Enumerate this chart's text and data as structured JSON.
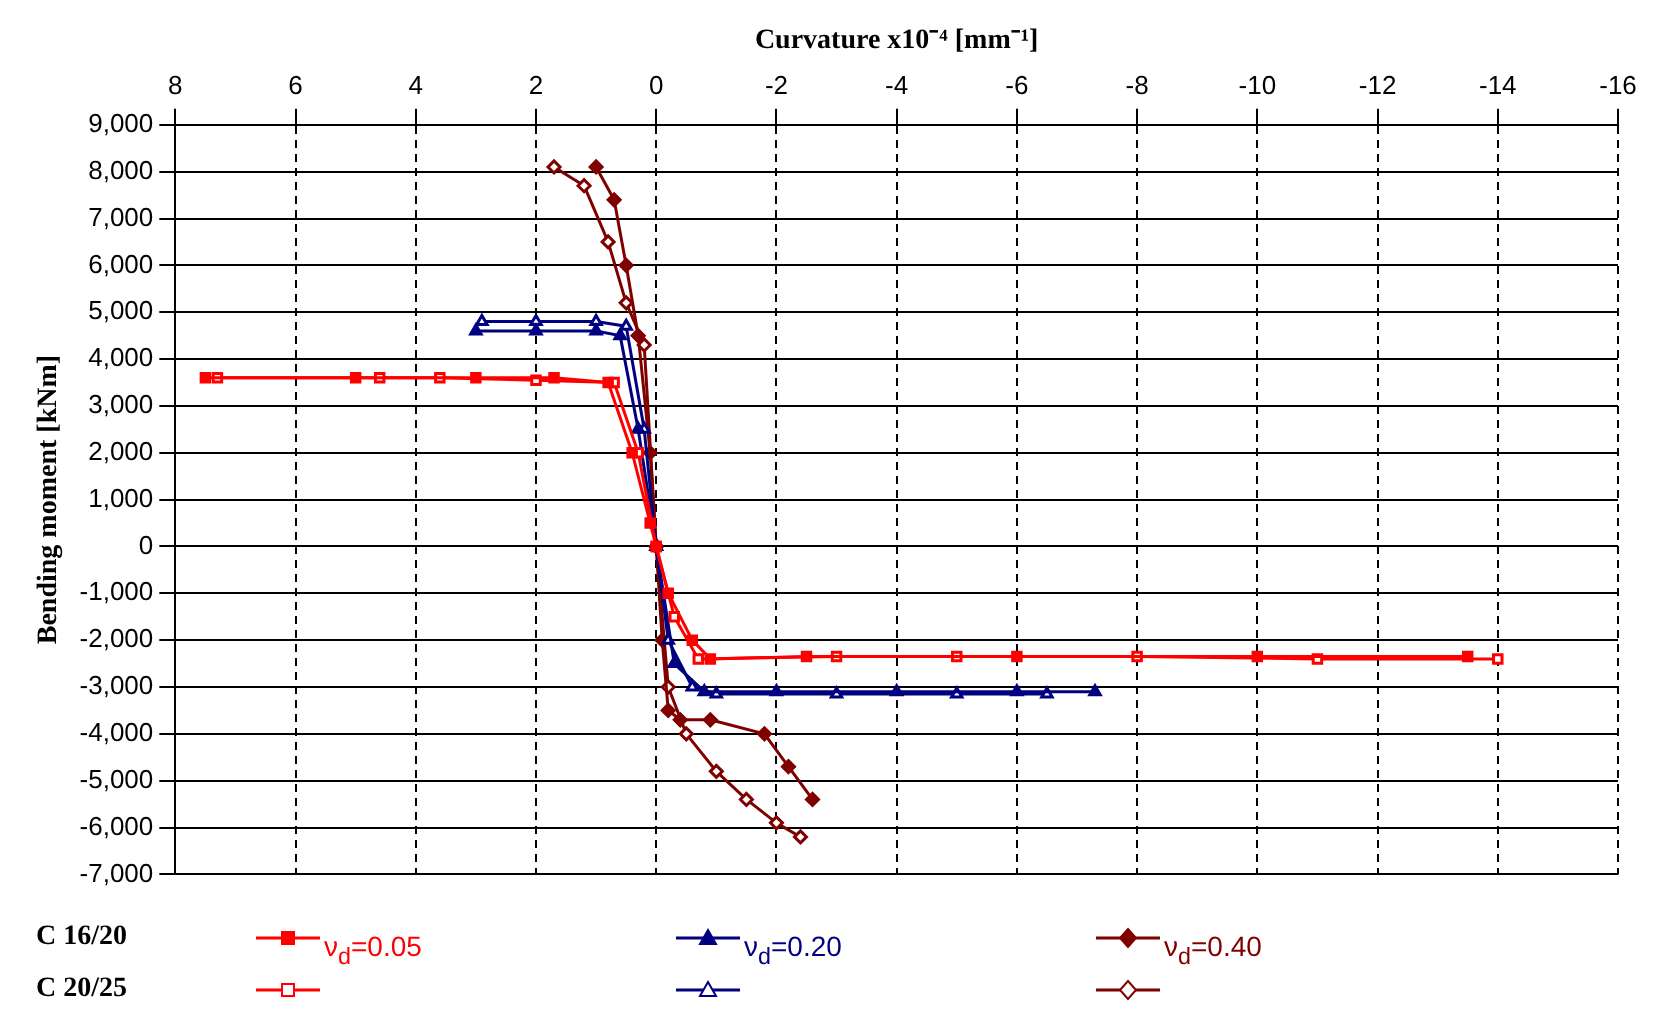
{
  "chart_data": {
    "type": "line",
    "xlabel": "Curvature x10⁻⁴ [mm⁻¹]",
    "ylabel": "Bending moment [kNm]",
    "xlim": [
      8,
      -16
    ],
    "xticks": [
      8,
      6,
      4,
      2,
      0,
      -2,
      -4,
      -6,
      -8,
      -10,
      -12,
      -14,
      -16
    ],
    "ylim": [
      -7000,
      9000
    ],
    "yticks": [
      {
        "value": 9000,
        "label": "9,000"
      },
      {
        "value": 8000,
        "label": "8,000"
      },
      {
        "value": 7000,
        "label": "7,000"
      },
      {
        "value": 6000,
        "label": "6,000"
      },
      {
        "value": 5000,
        "label": "5,000"
      },
      {
        "value": 4000,
        "label": "4,000"
      },
      {
        "value": 3000,
        "label": "3,000"
      },
      {
        "value": 2000,
        "label": "2,000"
      },
      {
        "value": 1000,
        "label": "1,000"
      },
      0,
      {
        "value": -1000,
        "label": "-1,000"
      },
      {
        "value": -2000,
        "label": "-2,000"
      },
      {
        "value": -3000,
        "label": "-3,000"
      },
      {
        "value": -4000,
        "label": "-4,000"
      },
      {
        "value": -5000,
        "label": "-5,000"
      },
      {
        "value": -6000,
        "label": "-6,000"
      },
      {
        "value": -7000,
        "label": "-7,000"
      }
    ],
    "grid": true,
    "legend": "bottom",
    "annotations": [
      "C 16/20",
      "C 20/25"
    ],
    "series": [
      {
        "name": "ν$_{d}$=0.05",
        "color": "#ff0000",
        "marker": "square",
        "x": [
          7.5,
          5,
          3,
          1.7,
          0.8,
          0.4,
          0.1,
          0,
          -0.2,
          -0.6,
          -0.9,
          -2.5,
          -6,
          -10,
          -13.5
        ],
        "values": [
          3600,
          3600,
          3600,
          3600,
          3500,
          2000,
          500,
          0,
          -1000,
          -2000,
          -2400,
          -2350,
          -2350,
          -2350,
          -2350
        ]
      },
      {
        "color": "#ff0000",
        "marker": "square",
        "x": [
          7.3,
          4.6,
          3.6,
          2,
          0.7,
          0.3,
          0,
          -0.3,
          -0.7,
          -3,
          -5,
          -8,
          -11,
          -14
        ],
        "values": [
          3600,
          3600,
          3600,
          3550,
          3500,
          2000,
          0,
          -1500,
          -2400,
          -2350,
          -2350,
          -2350,
          -2400,
          -2400
        ]
      },
      {
        "name": "ν$_{d}$=0.20",
        "color": "#000080",
        "marker": "triangle",
        "x": [
          3,
          2,
          1,
          0.6,
          0.3,
          0,
          -0.3,
          -0.8,
          -2,
          -4,
          -6,
          -7.3
        ],
        "values": [
          4600,
          4600,
          4600,
          4500,
          2500,
          0,
          -2500,
          -3100,
          -3100,
          -3100,
          -3100,
          -3100
        ]
      },
      {
        "color": "#000080",
        "marker": "triangle",
        "x": [
          2.9,
          2,
          1,
          0.5,
          0.2,
          0,
          -0.2,
          -0.6,
          -1,
          -3,
          -5,
          -6.5
        ],
        "values": [
          4800,
          4800,
          4800,
          4700,
          2500,
          0,
          -2000,
          -3000,
          -3150,
          -3150,
          -3150,
          -3150
        ]
      },
      {
        "name": "ν$_{d}$=0.40",
        "color": "#800000",
        "marker": "diamond",
        "x": [
          1,
          0.7,
          0.5,
          0.3,
          0.1,
          0,
          -0.1,
          -0.2,
          -0.4,
          -0.9,
          -1.8,
          -2.2,
          -2.6
        ],
        "values": [
          8100,
          7400,
          6000,
          4500,
          2000,
          0,
          -2000,
          -3500,
          -3700,
          -3700,
          -4000,
          -4700,
          -5400
        ]
      },
      {
        "color": "#800000",
        "marker": "diamond",
        "x": [
          1.7,
          1.2,
          0.8,
          0.5,
          0.2,
          0,
          -0.2,
          -0.5,
          -1,
          -1.5,
          -2,
          -2.4
        ],
        "values": [
          8100,
          7700,
          6500,
          5200,
          4300,
          0,
          -3000,
          -4000,
          -4800,
          -5400,
          -5900,
          -6200
        ]
      }
    ]
  }
}
